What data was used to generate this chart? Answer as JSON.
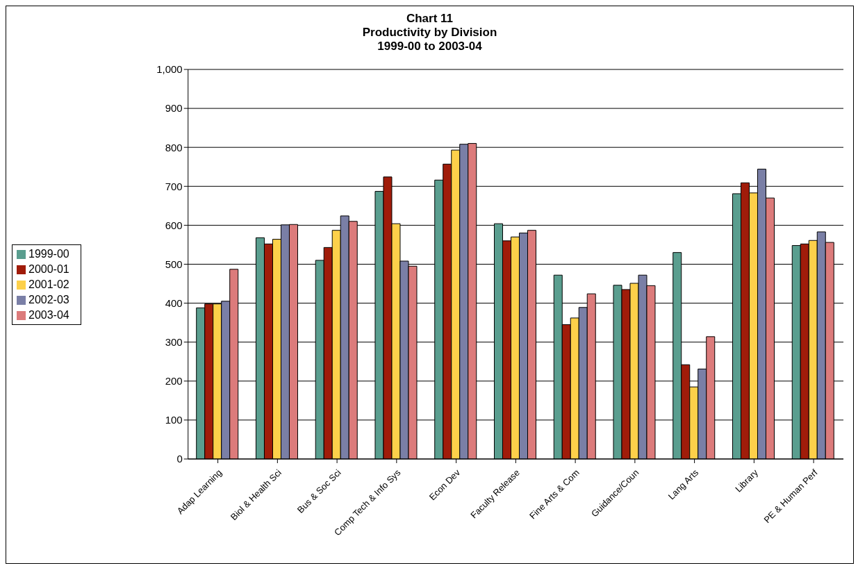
{
  "chart_data": {
    "type": "bar",
    "title": "Chart 11\nProductivity by Division\n1999-00 to 2003-04",
    "categories": [
      "Adap Learning",
      "Biol & Health Sci",
      "Bus & Soc Sci",
      "Comp Tech & Info Sys",
      "Econ Dev",
      "Faculty Release",
      "Fine Arts & Com",
      "Guidance/Coun",
      "Lang Arts",
      "Library",
      "PE & Human Perf"
    ],
    "series": [
      {
        "name": "1999-00",
        "color": "#5a9e8f",
        "values": [
          388,
          568,
          510,
          687,
          716,
          604,
          472,
          446,
          530,
          681,
          548
        ]
      },
      {
        "name": "2000-01",
        "color": "#a01c0a",
        "values": [
          398,
          552,
          543,
          724,
          757,
          560,
          345,
          435,
          242,
          709,
          552
        ]
      },
      {
        "name": "2001-02",
        "color": "#fdd04a",
        "values": [
          398,
          564,
          587,
          604,
          793,
          570,
          362,
          451,
          185,
          683,
          561
        ]
      },
      {
        "name": "2002-03",
        "color": "#7a7fa6",
        "values": [
          405,
          601,
          624,
          508,
          808,
          580,
          389,
          472,
          231,
          744,
          583
        ]
      },
      {
        "name": "2003-04",
        "color": "#dc7b7b",
        "values": [
          487,
          602,
          610,
          495,
          810,
          587,
          424,
          445,
          314,
          670,
          556
        ]
      }
    ],
    "ylim": [
      0,
      1000
    ],
    "yticks": [
      0,
      100,
      200,
      300,
      400,
      500,
      600,
      700,
      800,
      900,
      {
        "value": 1000,
        "label": "1,000"
      }
    ],
    "grid": "y",
    "legend": "left"
  }
}
